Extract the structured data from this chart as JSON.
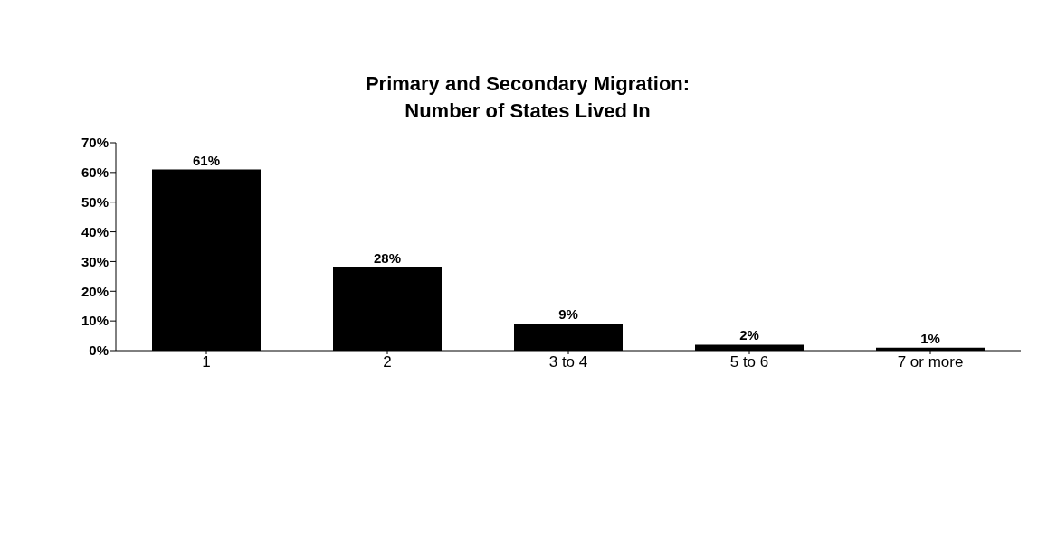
{
  "chart_data": {
    "type": "bar",
    "title": "Primary and Secondary Migration:\nNumber of States Lived In",
    "categories": [
      "1",
      "2",
      "3 to 4",
      "5 to 6",
      "7 or more"
    ],
    "values": [
      61,
      28,
      9,
      2,
      1
    ],
    "color": "#000000",
    "value_labels": [
      "61%",
      "28%",
      "9%",
      "2%",
      "1%"
    ],
    "ylim": [
      0,
      70
    ],
    "yticks": [
      {
        "value": 0,
        "label": "0%"
      },
      {
        "value": 10,
        "label": "10%"
      },
      {
        "value": 20,
        "label": "20%"
      },
      {
        "value": 30,
        "label": "30%"
      },
      {
        "value": 40,
        "label": "40%"
      },
      {
        "value": 50,
        "label": "50%"
      },
      {
        "value": 60,
        "label": "60%"
      },
      {
        "value": 70,
        "label": "70%"
      }
    ],
    "grid": false
  }
}
